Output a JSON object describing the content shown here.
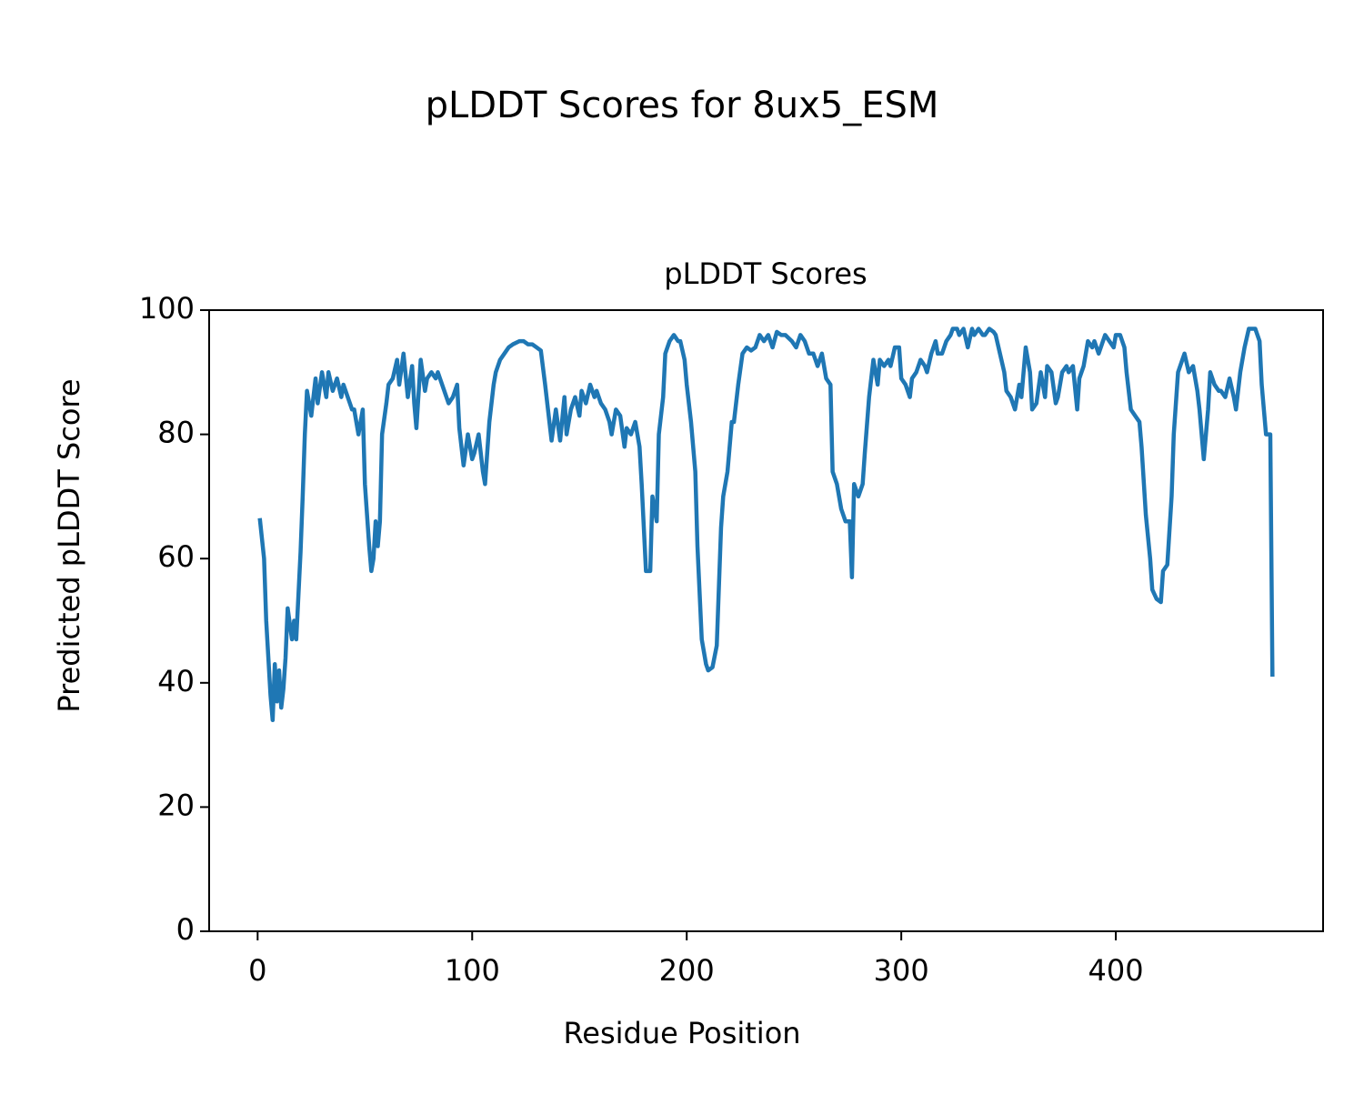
{
  "chart_data": {
    "type": "line",
    "title": "pLDDT Scores for 8ux5_ESM",
    "subtitle": "pLDDT Scores",
    "x_label": "Residue Position",
    "y_label": "Predicted pLDDT Score",
    "color": "#1f77b4",
    "x": [
      1,
      3,
      4,
      6,
      7,
      8,
      9,
      10,
      11,
      12,
      13,
      14,
      16,
      17,
      18,
      20,
      21,
      22,
      23,
      25,
      27,
      28,
      30,
      32,
      33,
      35,
      37,
      39,
      40,
      42,
      44,
      45,
      47,
      49,
      50,
      52,
      53,
      54,
      55,
      56,
      57,
      58,
      60,
      61,
      63,
      65,
      66,
      68,
      70,
      72,
      73,
      74,
      76,
      78,
      79,
      81,
      83,
      84,
      86,
      88,
      89,
      91,
      93,
      94,
      96,
      98,
      100,
      101,
      103,
      105,
      106,
      108,
      110,
      111,
      113,
      115,
      117,
      119,
      122,
      124,
      126,
      128,
      130,
      132,
      134,
      136,
      137,
      139,
      141,
      143,
      144,
      146,
      148,
      150,
      151,
      153,
      155,
      157,
      158,
      160,
      162,
      164,
      165,
      167,
      169,
      171,
      172,
      174,
      176,
      178,
      179,
      181,
      183,
      184,
      186,
      187,
      189,
      190,
      192,
      194,
      196,
      197,
      199,
      200,
      202,
      204,
      205,
      207,
      209,
      210,
      212,
      214,
      216,
      217,
      219,
      221,
      222,
      224,
      226,
      228,
      230,
      232,
      234,
      236,
      238,
      240,
      242,
      244,
      246,
      249,
      251,
      253,
      255,
      257,
      259,
      261,
      263,
      265,
      267,
      268,
      270,
      272,
      274,
      276,
      277,
      278,
      280,
      282,
      283,
      285,
      287,
      289,
      290,
      292,
      294,
      295,
      297,
      299,
      300,
      302,
      304,
      305,
      307,
      309,
      311,
      312,
      314,
      316,
      317,
      319,
      321,
      323,
      324,
      326,
      327,
      329,
      331,
      333,
      334,
      336,
      338,
      339,
      341,
      343,
      344,
      346,
      348,
      349,
      351,
      353,
      355,
      356,
      358,
      360,
      361,
      363,
      365,
      367,
      368,
      370,
      372,
      373,
      375,
      377,
      378,
      380,
      382,
      383,
      385,
      387,
      389,
      390,
      392,
      394,
      395,
      397,
      399,
      400,
      402,
      404,
      405,
      407,
      409,
      411,
      412,
      414,
      416,
      417,
      419,
      421,
      422,
      424,
      426,
      427,
      429,
      431,
      432,
      434,
      436,
      438,
      439,
      441,
      443,
      444,
      446,
      448,
      449,
      451,
      453,
      455,
      456,
      458,
      460,
      462,
      463,
      465,
      467,
      468,
      470,
      472,
      473
    ],
    "values": [
      66.5,
      60,
      50,
      38,
      34,
      43,
      37,
      42,
      36,
      39,
      44,
      52,
      47,
      50,
      47,
      61,
      70,
      80,
      87,
      83,
      89,
      85,
      90,
      86,
      90,
      87,
      89,
      86,
      88,
      86,
      84,
      84,
      80,
      84,
      72,
      62,
      58,
      60,
      66,
      62,
      66,
      80,
      85,
      88,
      89,
      92,
      88,
      93,
      86,
      91,
      85,
      81,
      92,
      87,
      89,
      90,
      89,
      90,
      88,
      86,
      85,
      86,
      88,
      81,
      75,
      80,
      76,
      77,
      80,
      74,
      72,
      82,
      88,
      90,
      92,
      93,
      94,
      94.5,
      95,
      95,
      94.5,
      94.5,
      94,
      93.5,
      88,
      82,
      79,
      84,
      79,
      86,
      80,
      84,
      86,
      83,
      87,
      85,
      88,
      86,
      87,
      85,
      84,
      82,
      80,
      84,
      83,
      78,
      81,
      80,
      82,
      78,
      72,
      58,
      58,
      70,
      66,
      80,
      86,
      93,
      95,
      96,
      95,
      95,
      92,
      88,
      82,
      74,
      62,
      47,
      43,
      42,
      42.5,
      46,
      65,
      70,
      74,
      82,
      82,
      88,
      93,
      94,
      93.5,
      94,
      96,
      95,
      96,
      94,
      96.5,
      96,
      96,
      95,
      94,
      96,
      95,
      93,
      93,
      91,
      93,
      89,
      88,
      74,
      72,
      68,
      66,
      66,
      57,
      72,
      70,
      72,
      77,
      86,
      92,
      88,
      92,
      91,
      92,
      91,
      94,
      94,
      89,
      88,
      86,
      89,
      90,
      92,
      91,
      90,
      93,
      95,
      93,
      93,
      95,
      96,
      97,
      97,
      96,
      97,
      94,
      97,
      96,
      97,
      96,
      96,
      97,
      96.5,
      96,
      93,
      90,
      87,
      86,
      84,
      88,
      86,
      94,
      90,
      84,
      85,
      90,
      86,
      91,
      90,
      85,
      86,
      90,
      91,
      90,
      91,
      84,
      89,
      91,
      95,
      94,
      95,
      93,
      95,
      96,
      95,
      94,
      96,
      96,
      94,
      90,
      84,
      83,
      82,
      78,
      67,
      60,
      55,
      53.5,
      53,
      58,
      59,
      70,
      80,
      90,
      92,
      93,
      90,
      91,
      87,
      84,
      76,
      84,
      90,
      88,
      87,
      87,
      86,
      89,
      86,
      84,
      90,
      94,
      97,
      97,
      97,
      95,
      88,
      80,
      80,
      41
    ],
    "xlim": [
      -22.6,
      496.6
    ],
    "ylim": [
      0,
      100
    ],
    "xticks": [
      0,
      100,
      200,
      300,
      400
    ],
    "yticks": [
      0,
      20,
      40,
      60,
      80,
      100
    ]
  }
}
